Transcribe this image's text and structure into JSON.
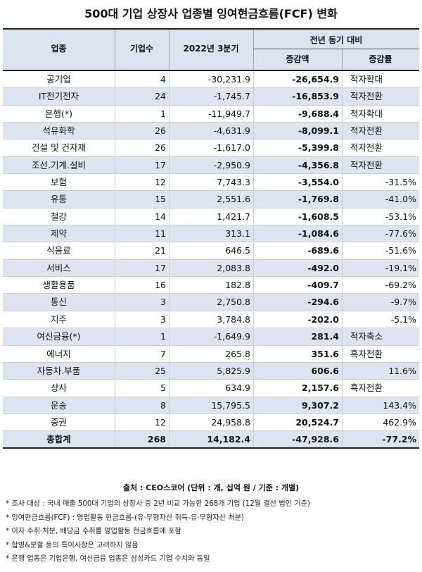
{
  "title": "500대 기업 상장사 업종별 잉여현금흐름(FCF) 변화",
  "header": {
    "sector": "업종",
    "count": "기업수",
    "q3": "2022년 3분기",
    "yoy": "전년 동기 대비",
    "change": "증감액",
    "rate": "증감률"
  },
  "rows": [
    {
      "name": "공기업",
      "count": "4",
      "q3": "-30,231.9",
      "change": "-26,654.9",
      "rate": "적자확대",
      "rate_type": "txt"
    },
    {
      "name": "IT전기전자",
      "count": "24",
      "q3": "-1,745.7",
      "change": "-16,853.9",
      "rate": "적자전환",
      "rate_type": "txt"
    },
    {
      "name": "은행(*)",
      "count": "1",
      "q3": "-11,949.7",
      "change": "-9,688.4",
      "rate": "적자확대",
      "rate_type": "txt"
    },
    {
      "name": "석유화학",
      "count": "26",
      "q3": "-4,631.9",
      "change": "-8,099.1",
      "rate": "적자전환",
      "rate_type": "txt"
    },
    {
      "name": "건설 및 건자재",
      "count": "26",
      "q3": "-1,617.0",
      "change": "-5,399.8",
      "rate": "적자전환",
      "rate_type": "txt"
    },
    {
      "name": "조선.기계.설비",
      "count": "17",
      "q3": "-2,950.9",
      "change": "-4,356.8",
      "rate": "적자전환",
      "rate_type": "txt"
    },
    {
      "name": "보험",
      "count": "12",
      "q3": "7,743.3",
      "change": "-3,554.0",
      "rate": "-31.5%",
      "rate_type": "num"
    },
    {
      "name": "유통",
      "count": "15",
      "q3": "2,551.6",
      "change": "-1,769.8",
      "rate": "-41.0%",
      "rate_type": "num"
    },
    {
      "name": "철강",
      "count": "14",
      "q3": "1,421.7",
      "change": "-1,608.5",
      "rate": "-53.1%",
      "rate_type": "num"
    },
    {
      "name": "제약",
      "count": "11",
      "q3": "313.1",
      "change": "-1,084.6",
      "rate": "-77.6%",
      "rate_type": "num"
    },
    {
      "name": "식음료",
      "count": "21",
      "q3": "646.5",
      "change": "-689.6",
      "rate": "-51.6%",
      "rate_type": "num"
    },
    {
      "name": "서비스",
      "count": "17",
      "q3": "2,083.8",
      "change": "-492.0",
      "rate": "-19.1%",
      "rate_type": "num"
    },
    {
      "name": "생활용품",
      "count": "16",
      "q3": "182.8",
      "change": "-409.7",
      "rate": "-69.2%",
      "rate_type": "num"
    },
    {
      "name": "통신",
      "count": "3",
      "q3": "2,750.8",
      "change": "-294.6",
      "rate": "-9.7%",
      "rate_type": "num"
    },
    {
      "name": "지주",
      "count": "3",
      "q3": "3,784.8",
      "change": "-202.0",
      "rate": "-5.1%",
      "rate_type": "num"
    },
    {
      "name": "여신금융(*)",
      "count": "1",
      "q3": "-1,649.9",
      "change": "281.4",
      "rate": "적자축소",
      "rate_type": "txt"
    },
    {
      "name": "에너지",
      "count": "7",
      "q3": "265.8",
      "change": "351.6",
      "rate": "흑자전환",
      "rate_type": "txt"
    },
    {
      "name": "자동차.부품",
      "count": "25",
      "q3": "5,825.9",
      "change": "606.6",
      "rate": "11.6%",
      "rate_type": "num"
    },
    {
      "name": "상사",
      "count": "5",
      "q3": "634.9",
      "change": "2,157.6",
      "rate": "흑자전환",
      "rate_type": "txt"
    },
    {
      "name": "운송",
      "count": "8",
      "q3": "15,795.5",
      "change": "9,307.2",
      "rate": "143.4%",
      "rate_type": "num"
    },
    {
      "name": "증권",
      "count": "12",
      "q3": "24,958.8",
      "change": "20,524.7",
      "rate": "462.9%",
      "rate_type": "num"
    }
  ],
  "total": {
    "name": "총합계",
    "count": "268",
    "q3": "14,182.4",
    "change": "-47,928.6",
    "rate": "-77.2%"
  },
  "source": "출처 : CEO스코어 (단위 : 개, 십억 원 / 기준 : 개별)",
  "notes": [
    "* 조사 대상 : 국내 매출 500대 기업의 상장사 중 2년 비교 가능한 268개 기업 (12월 결산 법인 기준)",
    "* 잉여현금흐름(FCF) : 영업활동 현금흐름-(유·무형자산 취득-유·무형자산 처분)",
    "* 이자 수취·처분, 배당금 수취를 영업활동 현금흐름에 포함",
    "* 합병&분할 등의 특이사항은 고려하지 않음",
    "* 은행 업종은 기업은행, 여신금융 업종은 삼성카드 기업 수치와 동일"
  ],
  "colors": {
    "header_bg": "#dde4ef",
    "border": "#222222"
  }
}
